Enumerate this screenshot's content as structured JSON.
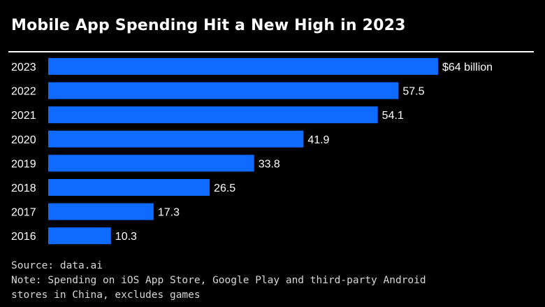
{
  "title": "Mobile App Spending Hit a New High in 2023",
  "source": "Source: data.ai",
  "note": "Note: Spending on iOS App Store, Google Play and third-party Android stores in China, excludes games",
  "colors": {
    "bar": "#0f6bff",
    "background": "#000000",
    "text": "#ffffff"
  },
  "chart_data": {
    "type": "bar",
    "orientation": "horizontal",
    "title": "Mobile App Spending Hit a New High in 2023",
    "xlabel": "",
    "ylabel": "",
    "units": "billion USD",
    "xlim": [
      0,
      64
    ],
    "categories": [
      "2023",
      "2022",
      "2021",
      "2020",
      "2019",
      "2018",
      "2017",
      "2016"
    ],
    "values": [
      64,
      57.5,
      54.1,
      41.9,
      33.8,
      26.5,
      17.3,
      10.3
    ],
    "labels": [
      "$64 billion",
      "57.5",
      "54.1",
      "41.9",
      "33.8",
      "26.5",
      "17.3",
      "10.3"
    ]
  }
}
